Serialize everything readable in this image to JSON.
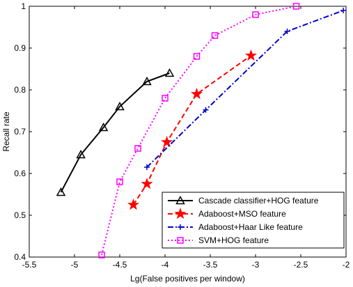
{
  "chart_data": {
    "type": "line",
    "title": "",
    "xlabel": "Lg(False positives per window)",
    "ylabel": "Recall rate",
    "xlim": [
      -5.5,
      -2
    ],
    "ylim": [
      0.4,
      1
    ],
    "xticks": [
      -5.5,
      -5,
      -4.5,
      -4,
      -3.5,
      -3,
      -2.5,
      -2
    ],
    "xtick_labels": [
      "-5.5",
      "-5",
      "-4.5",
      "-4",
      "-3.5",
      "-3",
      "-2.5",
      "-2"
    ],
    "yticks": [
      0.4,
      0.5,
      0.6,
      0.7,
      0.8,
      0.9,
      1
    ],
    "ytick_labels": [
      "0.4",
      "0.5",
      "0.6",
      "0.7",
      "0.8",
      "0.9",
      "1"
    ],
    "grid": false,
    "legend_position": "bottom-right",
    "series": [
      {
        "name": "Cascade classifier+HOG feature",
        "color": "#000000",
        "line_style": "solid",
        "marker": "triangle",
        "x": [
          -5.15,
          -4.93,
          -4.68,
          -4.5,
          -4.2,
          -3.95
        ],
        "y": [
          0.555,
          0.645,
          0.71,
          0.76,
          0.82,
          0.84
        ]
      },
      {
        "name": "Adaboost+MSO feature",
        "color": "#ff0000",
        "line_style": "dashed",
        "marker": "star",
        "x": [
          -4.35,
          -4.2,
          -3.98,
          -3.65,
          -3.05
        ],
        "y": [
          0.525,
          0.575,
          0.675,
          0.79,
          0.882
        ]
      },
      {
        "name": "Adaboost+Haar Like feature",
        "color": "#0000cc",
        "line_style": "dashdot",
        "marker": "plus",
        "x": [
          -4.2,
          -3.55,
          -2.65,
          -2.03
        ],
        "y": [
          0.615,
          0.752,
          0.94,
          0.99
        ]
      },
      {
        "name": "SVM+HOG feature",
        "color": "#ff00ff",
        "line_style": "dotted",
        "marker": "square",
        "x": [
          -4.7,
          -4.5,
          -4.3,
          -4.0,
          -3.65,
          -3.45,
          -3.0,
          -2.55
        ],
        "y": [
          0.405,
          0.58,
          0.66,
          0.78,
          0.88,
          0.93,
          0.98,
          1.0
        ]
      }
    ]
  }
}
